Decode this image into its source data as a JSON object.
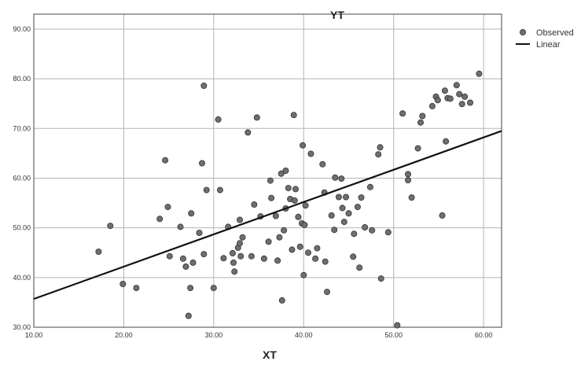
{
  "chart_data": {
    "type": "scatter",
    "title": "YT",
    "xlabel": "XT",
    "ylabel": "",
    "xlim": [
      10,
      62
    ],
    "ylim": [
      30,
      93
    ],
    "xticks": [
      "10.00",
      "20.00",
      "30.00",
      "40.00",
      "50.00",
      "60.00"
    ],
    "yticks": [
      "30.00",
      "40.00",
      "50.00",
      "60.00",
      "70.00",
      "80.00",
      "90.00"
    ],
    "grid": true,
    "legend_position": "top-right",
    "legend": [
      "Observed",
      "Linear"
    ],
    "series": [
      {
        "name": "Observed",
        "kind": "points",
        "color": "#6e6e6e",
        "points": [
          [
            17.2,
            45.2
          ],
          [
            18.5,
            50.4
          ],
          [
            19.9,
            38.7
          ],
          [
            21.4,
            37.9
          ],
          [
            24.0,
            51.8
          ],
          [
            24.6,
            63.6
          ],
          [
            24.9,
            54.2
          ],
          [
            25.1,
            44.3
          ],
          [
            26.3,
            50.2
          ],
          [
            26.6,
            43.8
          ],
          [
            26.9,
            42.2
          ],
          [
            27.2,
            32.3
          ],
          [
            27.4,
            37.9
          ],
          [
            27.5,
            52.9
          ],
          [
            27.7,
            43.0
          ],
          [
            28.4,
            49.0
          ],
          [
            28.7,
            63.0
          ],
          [
            28.9,
            44.7
          ],
          [
            28.9,
            78.6
          ],
          [
            29.2,
            57.6
          ],
          [
            30.0,
            37.9
          ],
          [
            30.5,
            71.8
          ],
          [
            30.7,
            57.6
          ],
          [
            31.1,
            43.9
          ],
          [
            31.6,
            50.2
          ],
          [
            32.1,
            44.9
          ],
          [
            32.2,
            43.0
          ],
          [
            32.3,
            41.2
          ],
          [
            32.7,
            46.0
          ],
          [
            32.9,
            46.9
          ],
          [
            32.9,
            51.6
          ],
          [
            33.0,
            44.3
          ],
          [
            33.2,
            48.1
          ],
          [
            33.8,
            69.2
          ],
          [
            34.2,
            44.3
          ],
          [
            34.5,
            54.7
          ],
          [
            34.8,
            72.2
          ],
          [
            35.2,
            52.3
          ],
          [
            35.6,
            43.8
          ],
          [
            36.1,
            47.2
          ],
          [
            36.3,
            59.5
          ],
          [
            36.4,
            56.0
          ],
          [
            36.9,
            52.4
          ],
          [
            37.1,
            43.4
          ],
          [
            37.3,
            48.1
          ],
          [
            37.5,
            60.9
          ],
          [
            37.6,
            35.4
          ],
          [
            37.8,
            49.5
          ],
          [
            38.0,
            61.5
          ],
          [
            38.0,
            53.9
          ],
          [
            38.3,
            58.0
          ],
          [
            38.5,
            55.8
          ],
          [
            38.7,
            45.6
          ],
          [
            38.9,
            72.7
          ],
          [
            39.0,
            55.5
          ],
          [
            39.1,
            57.8
          ],
          [
            39.4,
            52.2
          ],
          [
            39.6,
            46.2
          ],
          [
            39.8,
            50.9
          ],
          [
            39.9,
            66.6
          ],
          [
            40.0,
            40.5
          ],
          [
            40.1,
            50.6
          ],
          [
            40.2,
            54.5
          ],
          [
            40.5,
            45.0
          ],
          [
            40.8,
            64.9
          ],
          [
            41.3,
            43.8
          ],
          [
            41.5,
            45.9
          ],
          [
            42.1,
            62.8
          ],
          [
            42.3,
            57.1
          ],
          [
            42.4,
            43.2
          ],
          [
            42.6,
            37.1
          ],
          [
            43.1,
            52.5
          ],
          [
            43.4,
            49.6
          ],
          [
            43.5,
            60.1
          ],
          [
            43.9,
            56.2
          ],
          [
            44.2,
            59.9
          ],
          [
            44.3,
            54.0
          ],
          [
            44.5,
            51.2
          ],
          [
            44.7,
            56.2
          ],
          [
            45.0,
            52.9
          ],
          [
            45.5,
            44.2
          ],
          [
            45.6,
            48.8
          ],
          [
            46.0,
            54.2
          ],
          [
            46.2,
            42.0
          ],
          [
            46.4,
            56.1
          ],
          [
            46.8,
            50.1
          ],
          [
            47.4,
            58.2
          ],
          [
            47.6,
            49.5
          ],
          [
            48.3,
            64.8
          ],
          [
            48.5,
            66.2
          ],
          [
            48.6,
            39.8
          ],
          [
            49.4,
            49.1
          ],
          [
            50.4,
            30.4
          ],
          [
            51.0,
            73.0
          ],
          [
            51.6,
            60.8
          ],
          [
            51.6,
            59.6
          ],
          [
            52.0,
            56.1
          ],
          [
            52.7,
            66.0
          ],
          [
            53.0,
            71.2
          ],
          [
            53.2,
            72.5
          ],
          [
            54.3,
            74.5
          ],
          [
            54.7,
            76.4
          ],
          [
            54.9,
            75.7
          ],
          [
            55.4,
            52.5
          ],
          [
            55.7,
            77.6
          ],
          [
            55.8,
            67.4
          ],
          [
            56.0,
            76.1
          ],
          [
            56.3,
            76.0
          ],
          [
            57.0,
            78.7
          ],
          [
            57.3,
            76.9
          ],
          [
            57.6,
            74.9
          ],
          [
            57.9,
            76.4
          ],
          [
            58.5,
            75.2
          ],
          [
            59.5,
            81.0
          ]
        ]
      },
      {
        "name": "Linear",
        "kind": "line",
        "color": "#111111",
        "points": [
          [
            10,
            35.7
          ],
          [
            62,
            69.5
          ]
        ]
      }
    ]
  }
}
